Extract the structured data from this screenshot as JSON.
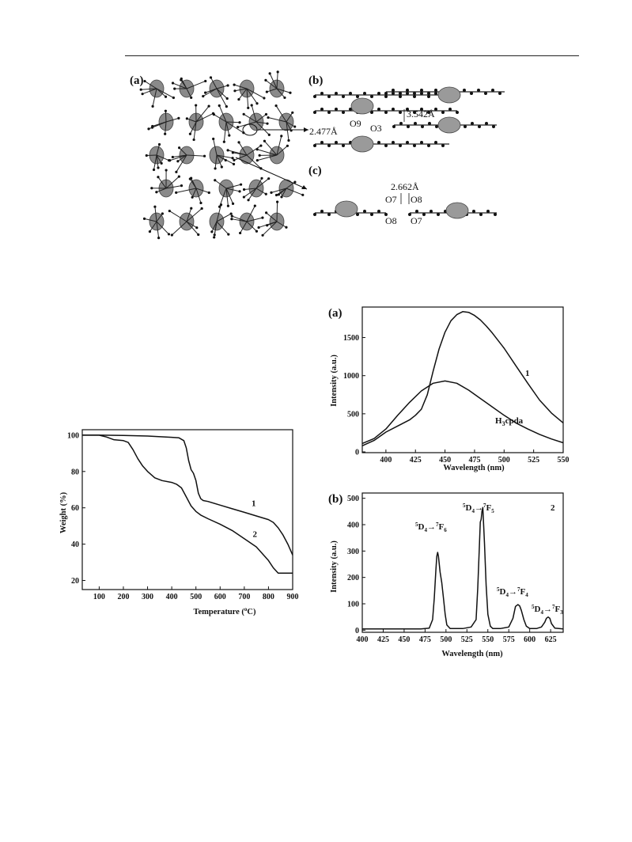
{
  "figure_structure": {
    "labels": {
      "a": "(a)",
      "b": "(b)",
      "c": "(c)"
    },
    "distances": {
      "d1": "2.477Å",
      "d2": "3.542Å",
      "d3": "2.662Å"
    },
    "atoms": {
      "o9": "O9",
      "o3": "O3",
      "o7_top": "O7",
      "o8_top": "O8",
      "o8_bottom": "O8",
      "o7_bottom": "O7"
    }
  },
  "chart_data": [
    {
      "id": "tga",
      "type": "line",
      "xlabel_main": "Temperature (",
      "xlabel_sup": "o",
      "xlabel_end": "C)",
      "ylabel": "Weight (%)",
      "xlim": [
        30,
        900
      ],
      "ylim": [
        15,
        103
      ],
      "xticks": [
        100,
        200,
        300,
        400,
        500,
        600,
        700,
        800,
        900
      ],
      "yticks": [
        20,
        40,
        60,
        80,
        100
      ],
      "series": [
        {
          "name": "1",
          "x": [
            30,
            100,
            200,
            300,
            400,
            430,
            450,
            460,
            470,
            480,
            490,
            500,
            510,
            520,
            530,
            550,
            600,
            650,
            700,
            750,
            800,
            820,
            840,
            860,
            880,
            900
          ],
          "y": [
            100,
            100,
            99.8,
            99.5,
            98.8,
            98.5,
            97,
            93,
            86,
            81,
            79,
            75,
            68,
            65,
            64,
            63.5,
            61.5,
            59.5,
            57.5,
            55.5,
            53.5,
            52,
            49,
            45,
            40,
            34
          ]
        },
        {
          "name": "2",
          "x": [
            30,
            100,
            130,
            160,
            200,
            220,
            240,
            260,
            280,
            300,
            330,
            360,
            400,
            420,
            440,
            460,
            480,
            500,
            520,
            550,
            600,
            650,
            700,
            750,
            800,
            820,
            840,
            860,
            900
          ],
          "y": [
            100,
            100,
            99,
            97.5,
            97,
            96,
            92,
            87,
            83,
            80,
            76.5,
            75,
            74,
            73,
            71,
            66,
            61,
            58,
            56,
            54,
            51,
            47.5,
            43,
            38.5,
            31,
            27,
            24,
            24,
            24
          ]
        }
      ]
    },
    {
      "id": "emission_a",
      "type": "line",
      "panel_label": "(a)",
      "xlabel": "Wavelength (nm)",
      "ylabel": "Intensity (a.u.)",
      "xlim": [
        380,
        550
      ],
      "ylim": [
        -10,
        1900
      ],
      "xticks": [
        400,
        425,
        450,
        475,
        500,
        525,
        550
      ],
      "yticks": [
        0,
        500,
        1000,
        1500
      ],
      "series": [
        {
          "name": "1",
          "x": [
            380,
            390,
            400,
            410,
            420,
            425,
            430,
            435,
            440,
            445,
            450,
            455,
            460,
            465,
            470,
            475,
            480,
            485,
            490,
            500,
            510,
            520,
            530,
            540,
            550
          ],
          "y": [
            80,
            150,
            260,
            340,
            420,
            480,
            560,
            750,
            1060,
            1350,
            1570,
            1720,
            1800,
            1840,
            1830,
            1790,
            1730,
            1650,
            1560,
            1360,
            1130,
            900,
            680,
            510,
            380
          ]
        },
        {
          "name": "H3cpda",
          "x": [
            380,
            390,
            400,
            410,
            420,
            430,
            440,
            450,
            460,
            470,
            480,
            490,
            500,
            510,
            520,
            530,
            540,
            550
          ],
          "y": [
            110,
            175,
            300,
            480,
            650,
            800,
            900,
            930,
            900,
            810,
            700,
            590,
            480,
            380,
            300,
            230,
            170,
            120
          ]
        }
      ]
    },
    {
      "id": "emission_b",
      "type": "line",
      "panel_label": "(b)",
      "xlabel": "Wavelength (nm)",
      "ylabel": "Intensity (a.u.)",
      "xlim": [
        400,
        640
      ],
      "ylim": [
        -8,
        520
      ],
      "xticks": [
        400,
        425,
        450,
        475,
        500,
        525,
        550,
        575,
        600,
        625
      ],
      "yticks": [
        0,
        100,
        200,
        300,
        400,
        500
      ],
      "series": [
        {
          "name": "2",
          "x": [
            400,
            470,
            480,
            484,
            486,
            488,
            489,
            490,
            491,
            493,
            495,
            497,
            499,
            501,
            505,
            520,
            530,
            536,
            538,
            540,
            541,
            542,
            543,
            544,
            546,
            548,
            550,
            553,
            556,
            565,
            575,
            580,
            583,
            586,
            588,
            590,
            593,
            596,
            600,
            608,
            614,
            618,
            620,
            622,
            624,
            626,
            630,
            640
          ],
          "y": [
            5,
            5,
            8,
            40,
            120,
            230,
            280,
            295,
            280,
            220,
            180,
            120,
            60,
            20,
            6,
            6,
            12,
            40,
            160,
            330,
            410,
            420,
            450,
            465,
            330,
            170,
            60,
            15,
            6,
            6,
            12,
            45,
            90,
            97,
            92,
            75,
            40,
            15,
            6,
            6,
            12,
            30,
            45,
            50,
            45,
            25,
            8,
            5
          ]
        }
      ],
      "annotations": [
        {
          "pre": "5",
          "a": "D",
          "as": "4",
          "arrow": "→",
          "pre2": "7",
          "b": "F",
          "bs": "6"
        },
        {
          "pre": "5",
          "a": "D",
          "as": "4",
          "arrow": "→",
          "pre2": "7",
          "b": "F",
          "bs": "5"
        },
        {
          "pre": "5",
          "a": "D",
          "as": "4",
          "arrow": "→",
          "pre2": "7",
          "b": "F",
          "bs": "4"
        },
        {
          "pre": "5",
          "a": "D",
          "as": "4",
          "arrow": "→",
          "pre2": "7",
          "b": "F",
          "bs": "3"
        }
      ],
      "series_label_2_base": "H",
      "series_label_2_sub": "3",
      "series_label_2_rest": "cpda"
    }
  ]
}
